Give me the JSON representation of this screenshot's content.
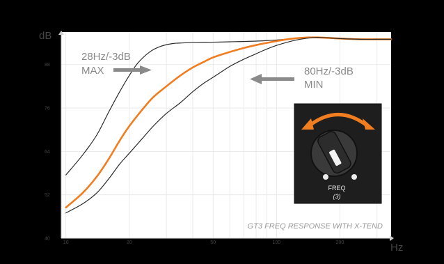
{
  "chart_data": {
    "type": "line",
    "ylabel": "dB",
    "xlabel": "Hz",
    "x_scale": "log",
    "xlim": [
      9.5,
      350
    ],
    "ylim": [
      40,
      97
    ],
    "x_ticks": [
      10,
      20,
      50,
      100,
      200
    ],
    "x_tick_labels": [
      "10",
      "20",
      "50",
      "100",
      "200"
    ],
    "y_ticks": [
      40,
      52,
      64,
      76,
      88
    ],
    "y_tick_labels": [
      "40",
      "52",
      "64",
      "76",
      "88"
    ],
    "grid": true,
    "series": [
      {
        "key": "max",
        "color": "#2b2b2b",
        "x": [
          10,
          12,
          14,
          16,
          18,
          20,
          22,
          25,
          28,
          32,
          36,
          40,
          50,
          60,
          80,
          100,
          120,
          140,
          160,
          200,
          250,
          300,
          350
        ],
        "y": [
          57.5,
          63,
          68.5,
          75,
          80.5,
          85,
          88.5,
          91.5,
          93,
          93.8,
          94,
          94.1,
          94.2,
          94.3,
          94.5,
          94.8,
          95.2,
          95.4,
          95.5,
          95.2,
          95,
          95,
          95
        ]
      },
      {
        "key": "mid",
        "color": "#f07d1f",
        "x": [
          10,
          12,
          14,
          16,
          18,
          20,
          23,
          26,
          30,
          35,
          40,
          45,
          50,
          60,
          70,
          80,
          100,
          120,
          140,
          160,
          200,
          250,
          300,
          350
        ],
        "y": [
          48.5,
          52.5,
          57,
          62,
          67,
          71,
          75.5,
          79,
          82,
          85,
          87.2,
          88.7,
          90,
          91.5,
          92.6,
          93.4,
          94.5,
          95.2,
          95.5,
          95.5,
          95.2,
          95,
          95,
          95
        ]
      },
      {
        "key": "min",
        "color": "#2b2b2b",
        "x": [
          10,
          12,
          14,
          16,
          18,
          20,
          23,
          26,
          30,
          35,
          40,
          45,
          50,
          60,
          70,
          80,
          90,
          100,
          120,
          140,
          160,
          200,
          250,
          300,
          350
        ],
        "y": [
          47,
          49.5,
          52.5,
          56.5,
          60.5,
          63.5,
          67.5,
          71,
          74.5,
          77.5,
          80.5,
          82.8,
          84.5,
          87.5,
          89.5,
          91,
          92.3,
          93.3,
          94.6,
          95.3,
          95.5,
          95.2,
          95,
          95,
          95
        ]
      }
    ],
    "annotations": {
      "max_line1": "28Hz/-3dB",
      "max_line2": "MAX",
      "min_line1": "80Hz/-3dB",
      "min_line2": "MIN",
      "footer": "GT3  FREQ RESPONSE WITH X-TEND"
    }
  },
  "knob_panel": {
    "label": "FREQ",
    "sublabel": "(3)",
    "arrow_color": "#f07d1f",
    "icon": "rotary-knob-icon"
  },
  "colors": {
    "background": "#000000",
    "plot_bg": "#ffffff",
    "grid": "#dcdcdc",
    "accent": "#f07d1f"
  }
}
